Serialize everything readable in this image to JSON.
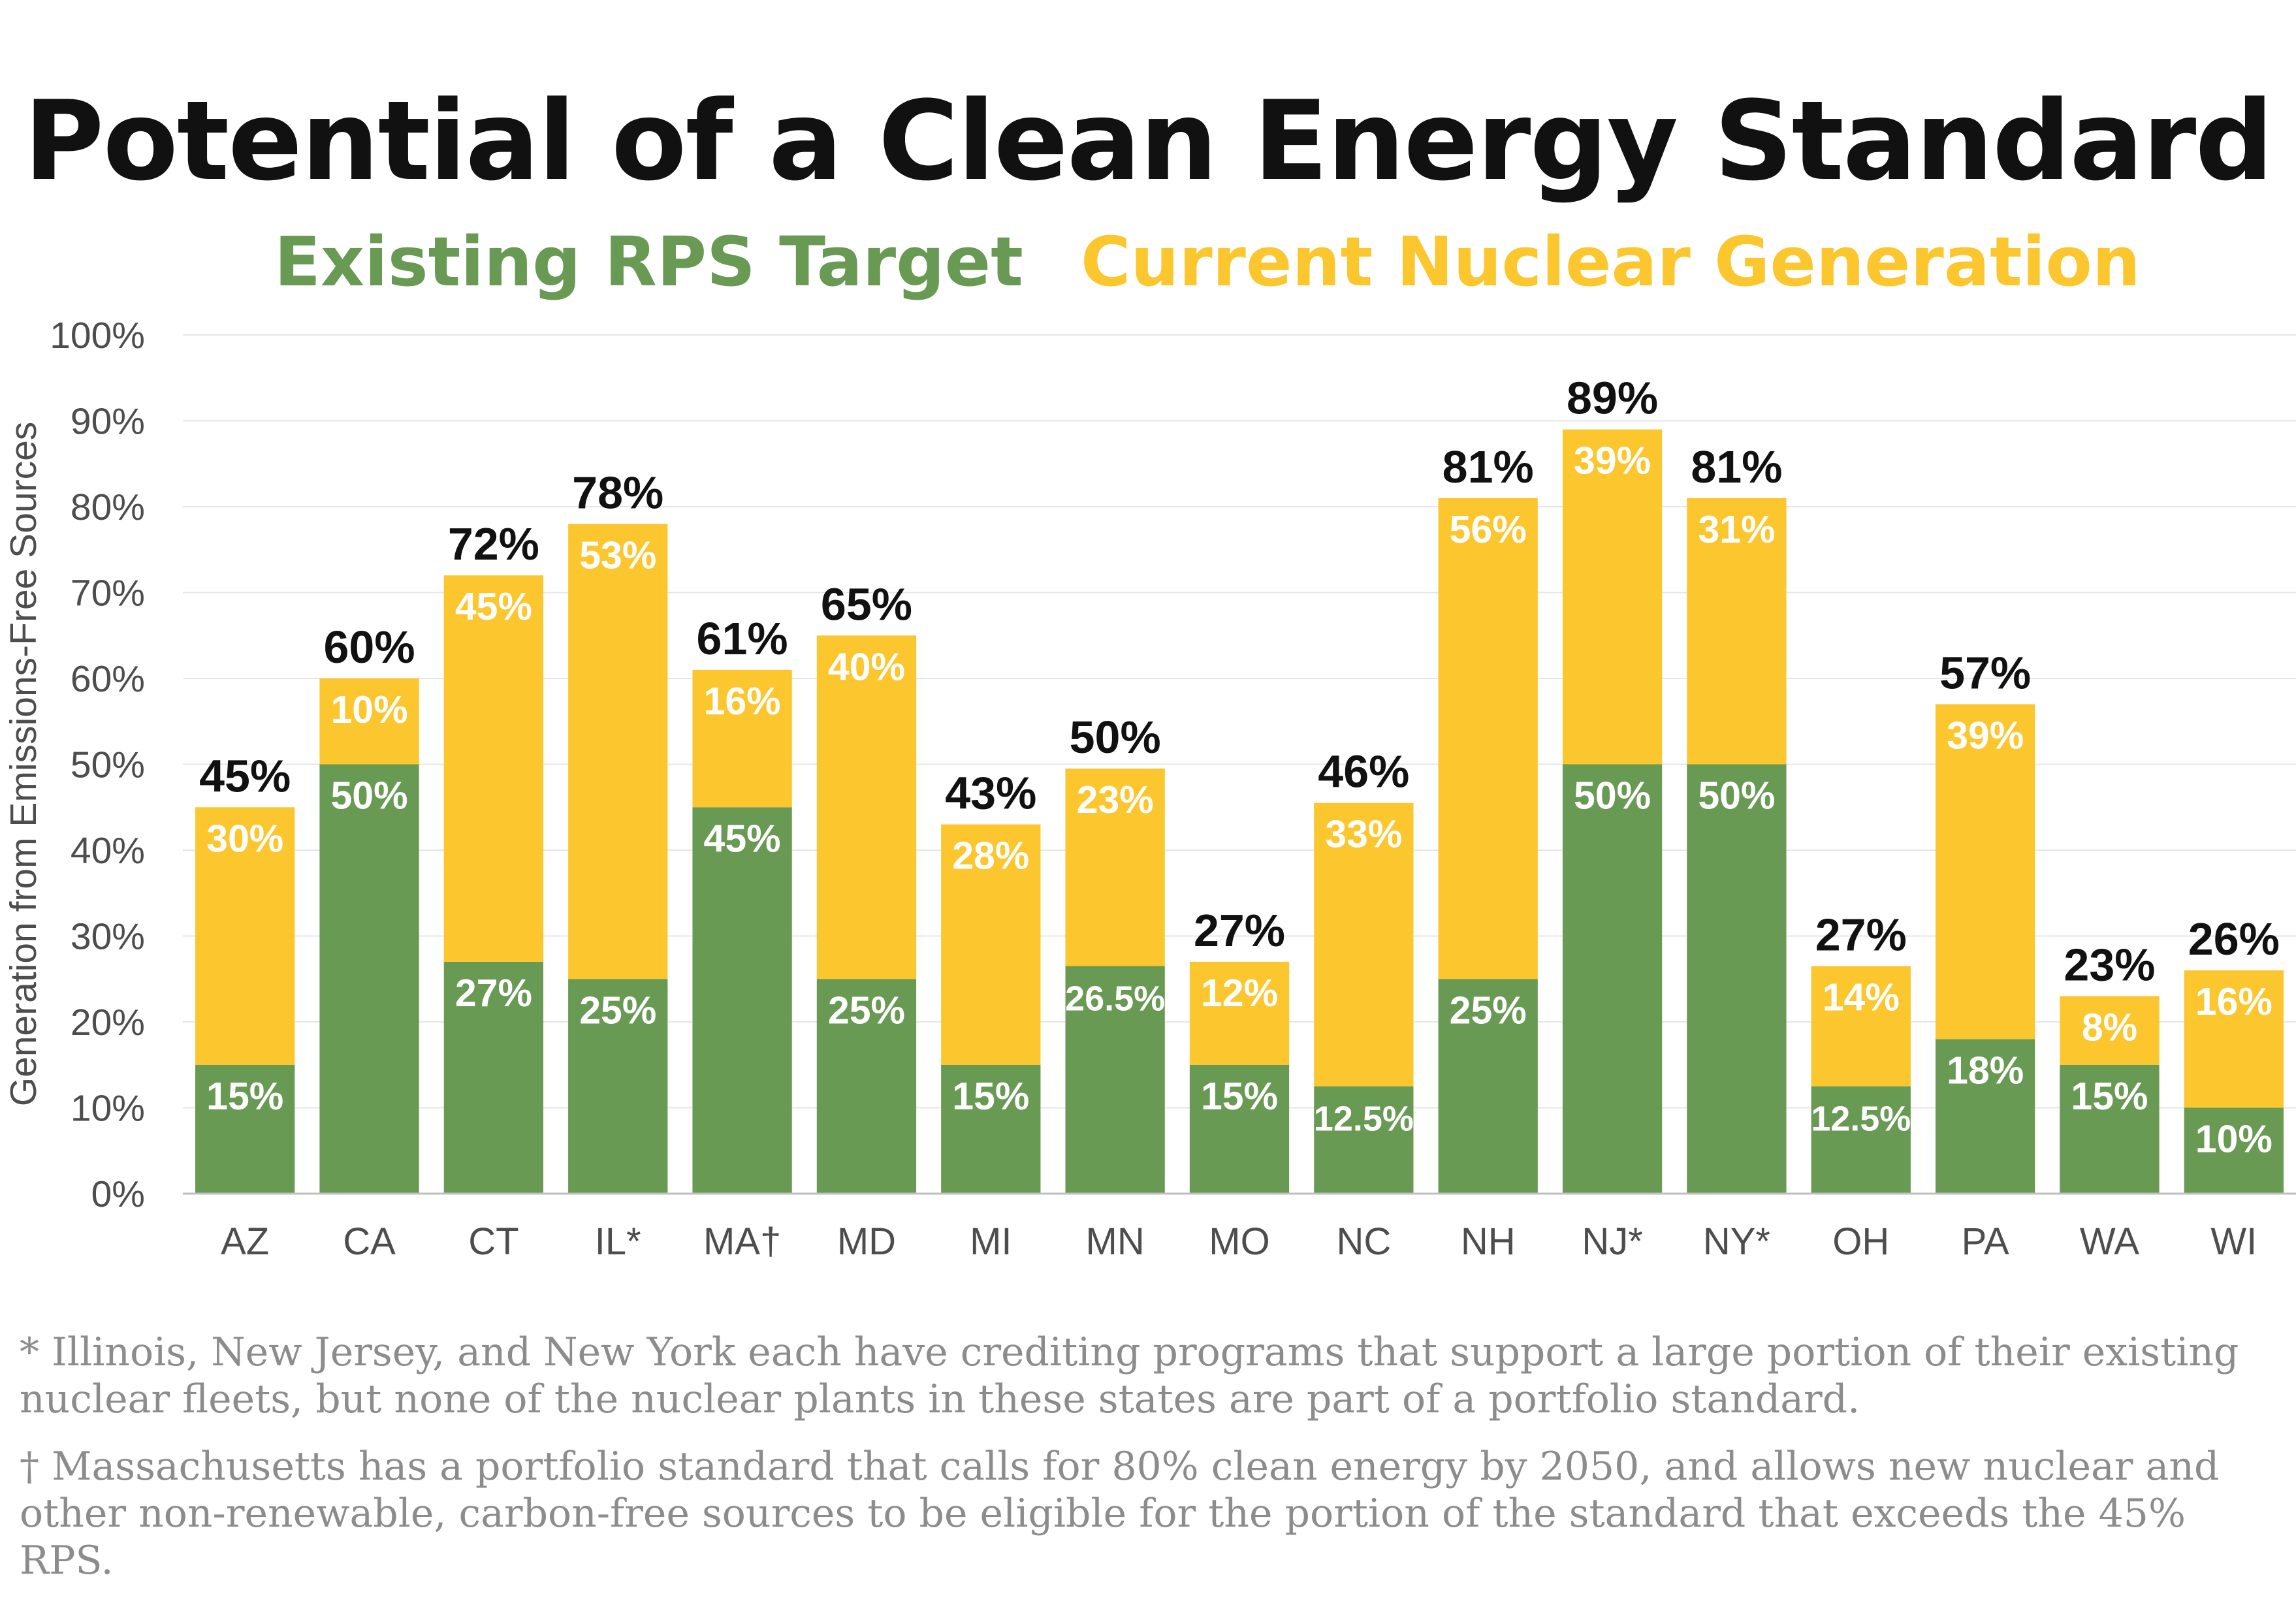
{
  "title": "Potential of a Clean Energy Standard",
  "colors": {
    "rps": "#689a54",
    "nuclear": "#fcc62e",
    "grid": "#e6e6e6",
    "axis_text": "#4d4d4d"
  },
  "footnotes": [
    "* Illinois, New Jersey, and New York each have crediting programs that support a large portion of their existing nuclear fleets, but none of the nuclear plants in these states are part of a portfolio standard.",
    "† Massachusetts has a portfolio standard that calls for 80% clean energy by 2050, and allows new nuclear and other non-renewable, carbon-free sources to be eligible for the portion of the standard that exceeds the 45% RPS."
  ],
  "chart_data": {
    "type": "bar",
    "stacked": true,
    "title": "Potential of a Clean Energy Standard",
    "ylabel": "Generation from Emissions-Free Sources",
    "ylim": [
      0,
      100
    ],
    "yticks": [
      "0%",
      "10%",
      "20%",
      "30%",
      "40%",
      "50%",
      "60%",
      "70%",
      "80%",
      "90%",
      "100%"
    ],
    "grid": true,
    "legend_position": "top",
    "categories": [
      "AZ",
      "CA",
      "CT",
      "IL*",
      "MA†",
      "MD",
      "MI",
      "MN",
      "MO",
      "NC",
      "NH",
      "NJ*",
      "NY*",
      "OH",
      "PA",
      "WA",
      "WI"
    ],
    "series": [
      {
        "name": "Existing RPS Target",
        "color": "#689a54",
        "values": [
          15,
          50,
          27,
          25,
          45,
          25,
          15,
          26.5,
          15,
          12.5,
          25,
          50,
          50,
          12.5,
          18,
          15,
          10
        ],
        "labels": [
          "15%",
          "50%",
          "27%",
          "25%",
          "45%",
          "25%",
          "15%",
          "26.5%",
          "15%",
          "12.5%",
          "25%",
          "50%",
          "50%",
          "12.5%",
          "18%",
          "15%",
          "10%"
        ]
      },
      {
        "name": "Current Nuclear Generation",
        "color": "#fcc62e",
        "values": [
          30,
          10,
          45,
          53,
          16,
          40,
          28,
          23,
          12,
          33,
          56,
          39,
          31,
          14,
          39,
          8,
          16
        ],
        "labels": [
          "30%",
          "10%",
          "45%",
          "53%",
          "16%",
          "40%",
          "28%",
          "23%",
          "12%",
          "33%",
          "56%",
          "39%",
          "31%",
          "14%",
          "39%",
          "8%",
          "16%"
        ]
      }
    ],
    "totals": [
      45,
      60,
      72,
      78,
      61,
      65,
      43,
      50,
      27,
      46,
      81,
      89,
      81,
      27,
      57,
      23,
      26
    ],
    "total_labels": [
      "45%",
      "60%",
      "72%",
      "78%",
      "61%",
      "65%",
      "43%",
      "50%",
      "27%",
      "46%",
      "81%",
      "89%",
      "81%",
      "27%",
      "57%",
      "23%",
      "26%"
    ]
  }
}
